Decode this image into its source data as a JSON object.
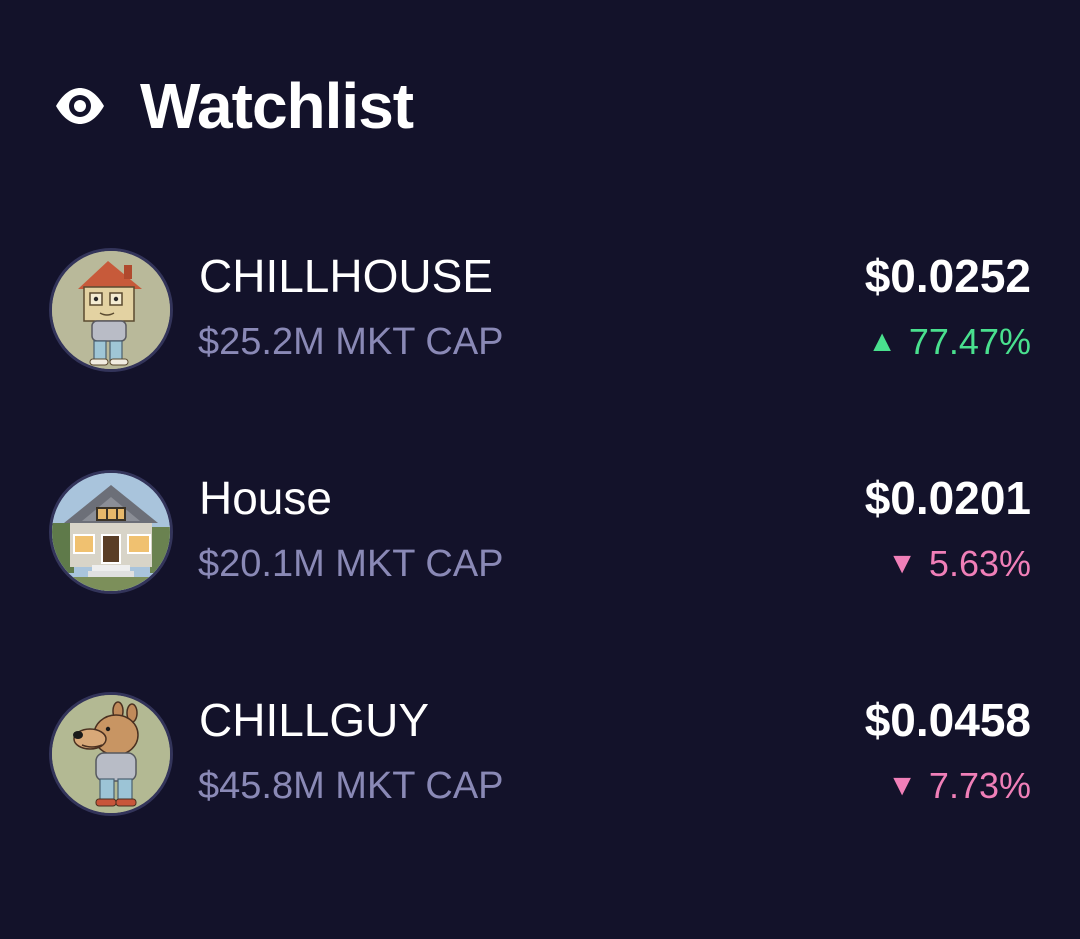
{
  "header": {
    "title": "Watchlist",
    "icon": "eye-icon"
  },
  "colors": {
    "background": "#13122a",
    "muted_text": "#8a89b6",
    "positive": "#49e08e",
    "negative": "#f07fb8"
  },
  "watchlist": [
    {
      "name": "CHILLHOUSE",
      "market_cap": "$25.2M MKT CAP",
      "price": "$0.0252",
      "change": "77.47%",
      "direction": "up",
      "arrow": "▲",
      "avatar_icon": "chillhouse-avatar-icon"
    },
    {
      "name": "House",
      "market_cap": "$20.1M MKT CAP",
      "price": "$0.0201",
      "change": "5.63%",
      "direction": "down",
      "arrow": "▼",
      "avatar_icon": "house-avatar-icon"
    },
    {
      "name": "CHILLGUY",
      "market_cap": "$45.8M MKT CAP",
      "price": "$0.0458",
      "change": "7.73%",
      "direction": "down",
      "arrow": "▼",
      "avatar_icon": "chillguy-avatar-icon"
    }
  ]
}
